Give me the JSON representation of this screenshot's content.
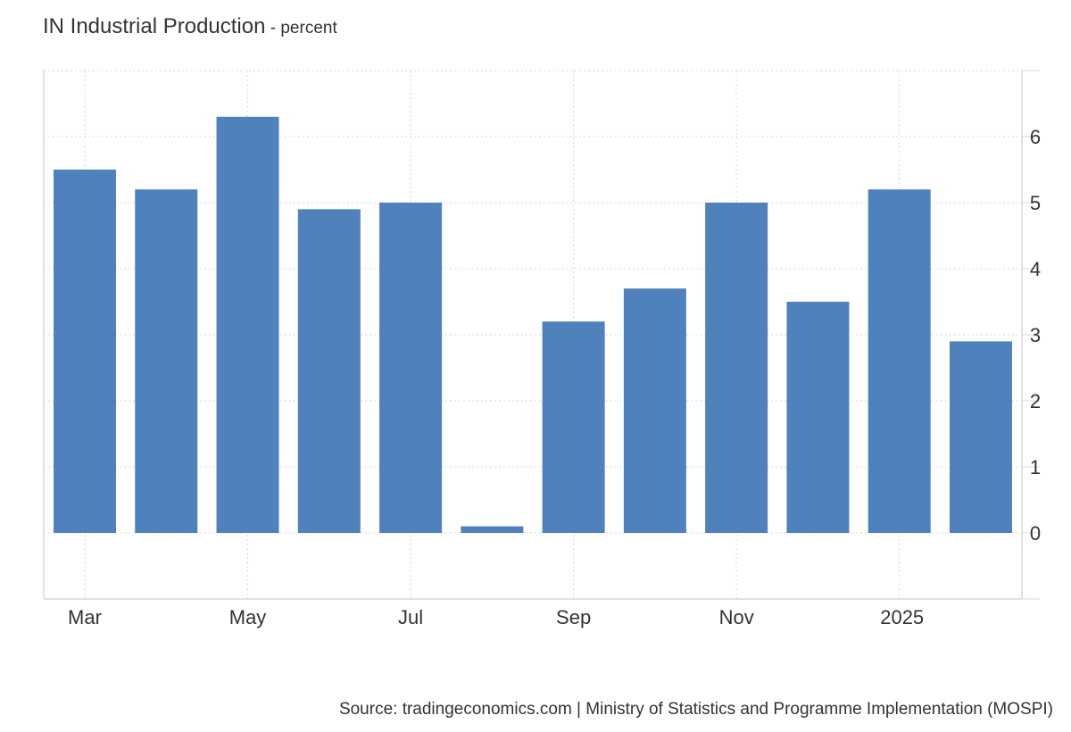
{
  "header": {
    "title": "IN Industrial Production",
    "subtitle": " - percent"
  },
  "source": "Source: tradingeconomics.com | Ministry of Statistics and Programme Implementation (MOSPI)",
  "colors": {
    "bar": "#4f81bd",
    "grid": "#d9d9d9",
    "axis": "#d9d9d9"
  },
  "chart_data": {
    "type": "bar",
    "title": "IN Industrial Production",
    "subtitle": "- percent",
    "categories": [
      "2024-03",
      "2024-04",
      "2024-05",
      "2024-06",
      "2024-07",
      "2024-08",
      "2024-09",
      "2024-10",
      "2024-11",
      "2024-12",
      "2025-01",
      "2025-02"
    ],
    "x_tick_labels": [
      {
        "category": "2024-03",
        "label": "Mar"
      },
      {
        "category": "2024-05",
        "label": "May"
      },
      {
        "category": "2024-07",
        "label": "Jul"
      },
      {
        "category": "2024-09",
        "label": "Sep"
      },
      {
        "category": "2024-11",
        "label": "Nov"
      },
      {
        "category": "2025-01",
        "label": "2025"
      }
    ],
    "values": [
      5.5,
      5.2,
      6.3,
      4.9,
      5.0,
      0.1,
      3.2,
      3.7,
      5.0,
      3.5,
      5.2,
      2.9
    ],
    "ylim": [
      -1,
      7
    ],
    "y_ticks": [
      0,
      1,
      2,
      3,
      4,
      5,
      6
    ],
    "y_axis_side": "right",
    "grid": true,
    "xlabel": "",
    "ylabel": ""
  }
}
